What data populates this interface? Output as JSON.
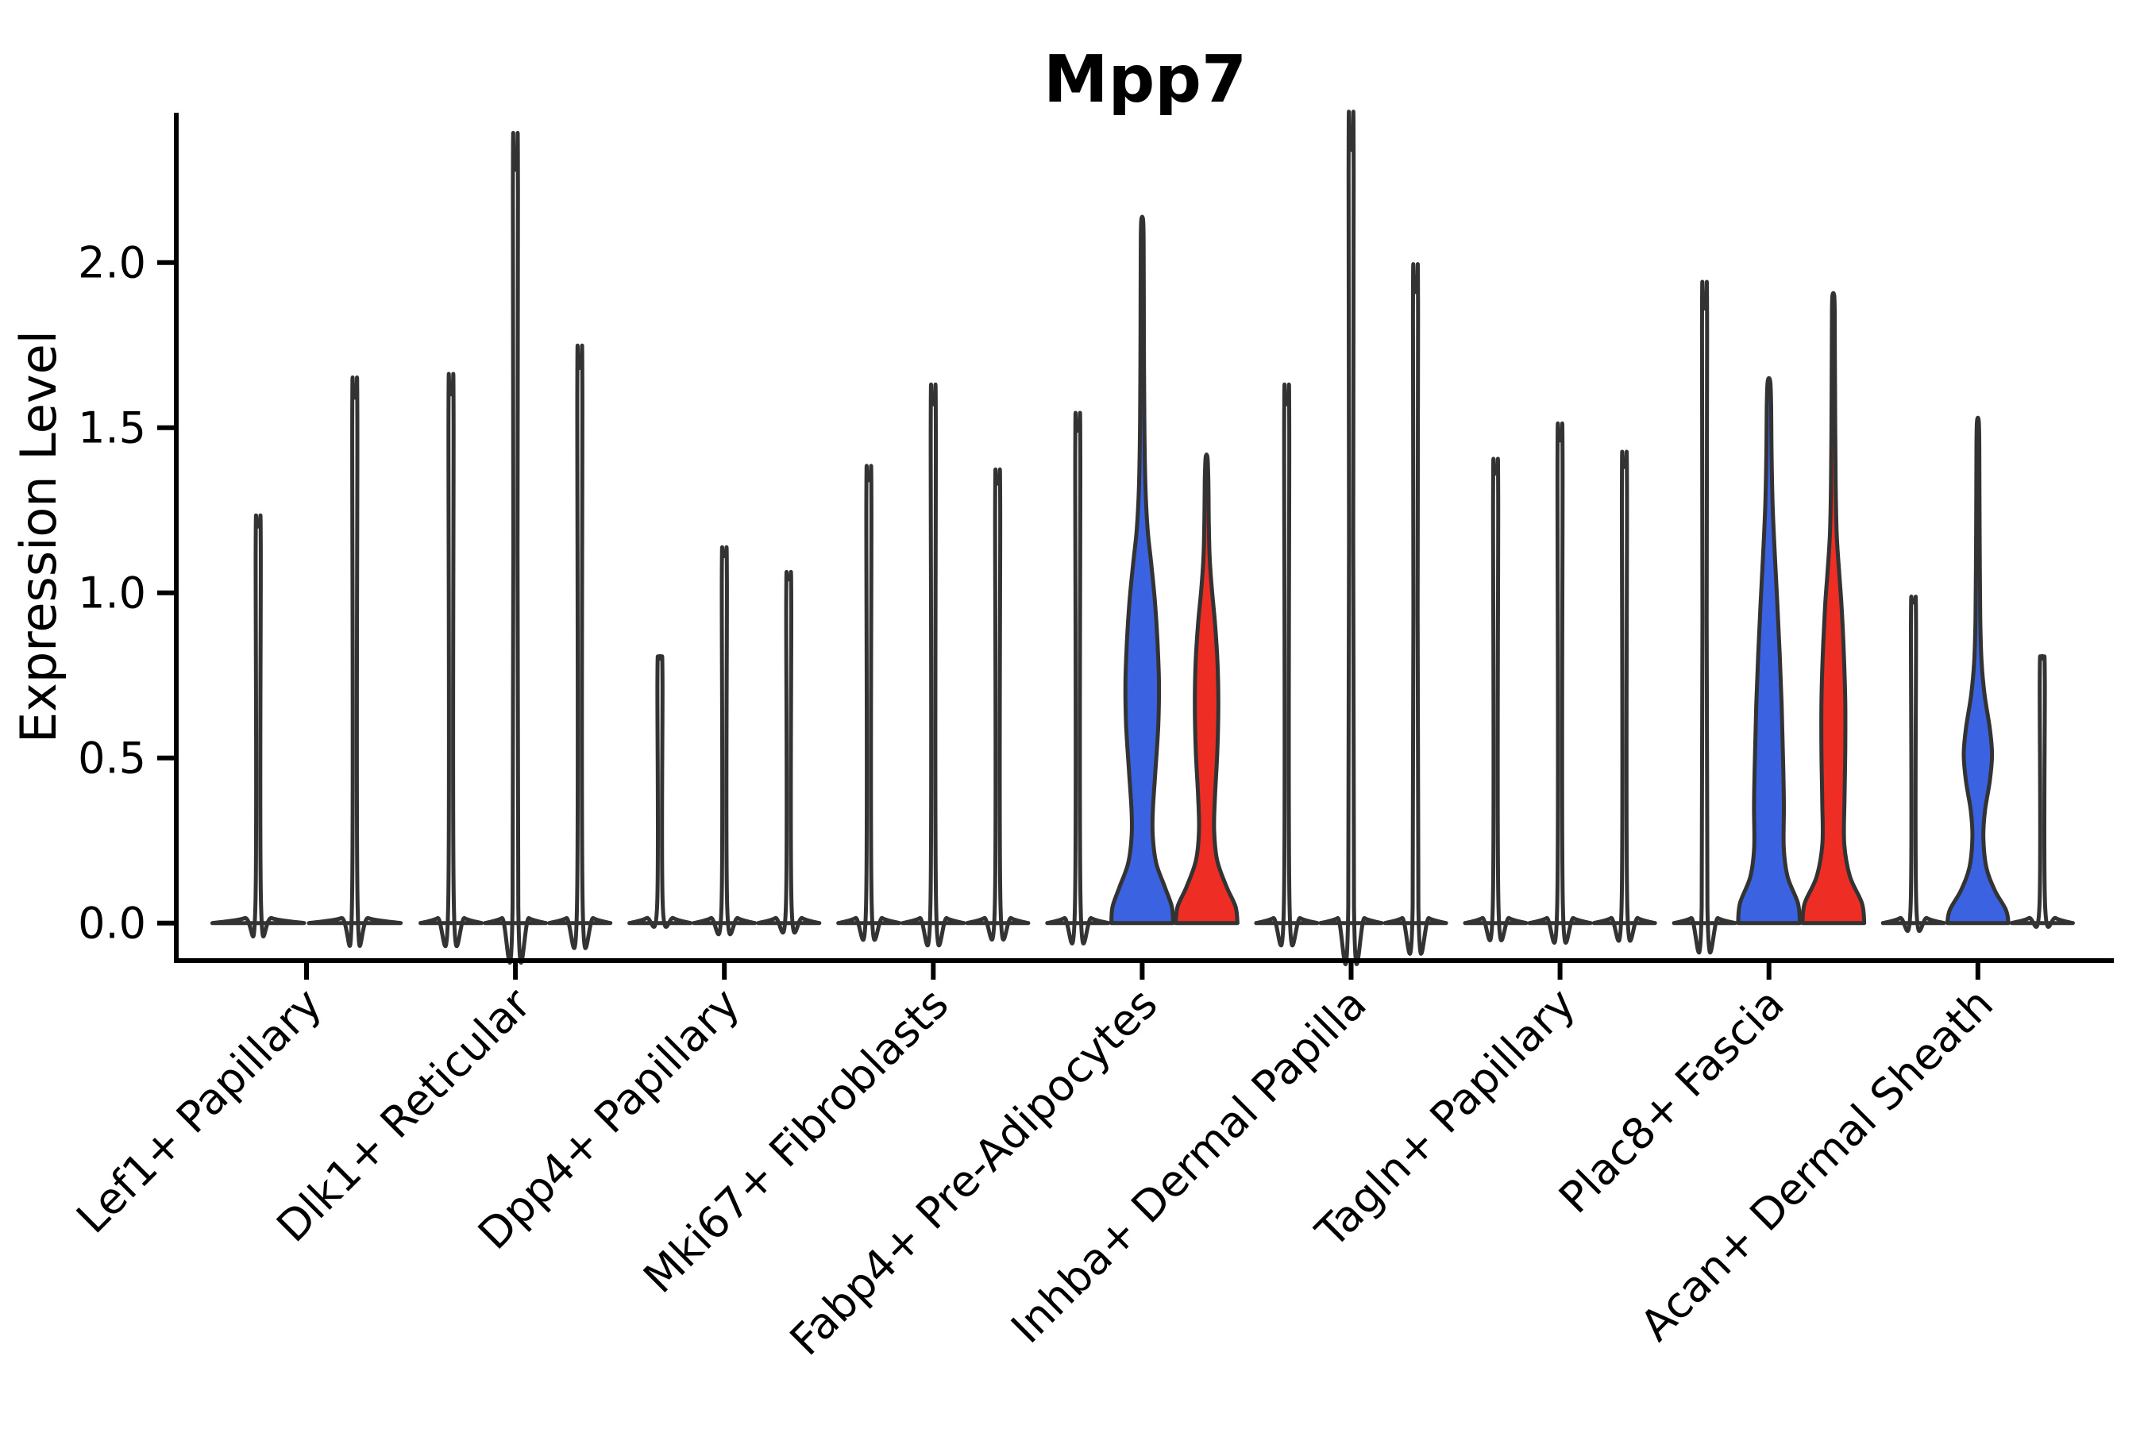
{
  "title": "Mpp7",
  "axes": {
    "ylabel": "Expression Level",
    "ytick_labels": [
      "0.0",
      "0.5",
      "1.0",
      "1.5",
      "2.0"
    ],
    "ylim": [
      -0.11,
      2.46
    ]
  },
  "colors": {
    "blue": "#3B63E1",
    "red": "#EE2E24",
    "violin_stroke": "#333333",
    "axis": "#000000",
    "background": "#FFFFFF",
    "none": "#FFFFFF"
  },
  "chart_data": {
    "type": "violin",
    "title": "Mpp7",
    "ylabel": "Expression Level",
    "yticks": [
      0.0,
      0.5,
      1.0,
      1.5,
      2.0
    ],
    "grid": false,
    "legend": false,
    "categories": [
      "Lef1+ Papillary",
      "Dlk1+ Reticular",
      "Dpp4+ Papillary",
      "Mki67+ Fibroblasts",
      "Fabp4+ Pre-Adipocytes",
      "Inhba+ Dermal Papilla",
      "Tagln+ Papillary",
      "Plac8+ Fascia",
      "Acan+ Dermal Sheath"
    ],
    "groups": [
      {
        "category": "Lef1+ Papillary",
        "violins": [
          {
            "shape": "spike",
            "max": 1.2,
            "fill": "none"
          },
          {
            "shape": "spike",
            "max": 1.59,
            "fill": "none"
          }
        ]
      },
      {
        "category": "Dlk1+ Reticular",
        "violins": [
          {
            "shape": "spike",
            "max": 1.6,
            "fill": "none"
          },
          {
            "shape": "spike",
            "max": 2.28,
            "fill": "none"
          },
          {
            "shape": "spike",
            "max": 1.68,
            "fill": "none"
          }
        ]
      },
      {
        "category": "Dpp4+ Papillary",
        "violins": [
          {
            "shape": "spike",
            "max": 0.8,
            "fill": "none"
          },
          {
            "shape": "spike",
            "max": 1.11,
            "fill": "none"
          },
          {
            "shape": "spike",
            "max": 1.04,
            "fill": "none"
          }
        ]
      },
      {
        "category": "Mki67+ Fibroblasts",
        "violins": [
          {
            "shape": "spike",
            "max": 1.34,
            "fill": "none"
          },
          {
            "shape": "spike",
            "max": 1.57,
            "fill": "none"
          },
          {
            "shape": "spike",
            "max": 1.33,
            "fill": "none"
          }
        ]
      },
      {
        "category": "Fabp4+ Pre-Adipocytes",
        "violins": [
          {
            "shape": "spike",
            "max": 1.49,
            "fill": "none"
          },
          {
            "shape": "profile",
            "max": 2.13,
            "fill": "blue",
            "profile": [
              [
                0,
                0.96
              ],
              [
                0.05,
                0.92
              ],
              [
                0.11,
                0.7
              ],
              [
                0.18,
                0.44
              ],
              [
                0.26,
                0.33
              ],
              [
                0.34,
                0.33
              ],
              [
                0.46,
                0.41
              ],
              [
                0.6,
                0.5
              ],
              [
                0.73,
                0.52
              ],
              [
                0.86,
                0.47
              ],
              [
                0.98,
                0.39
              ],
              [
                1.09,
                0.28
              ],
              [
                1.19,
                0.17
              ],
              [
                1.32,
                0.1
              ],
              [
                1.52,
                0.066
              ],
              [
                1.8,
                0.052
              ],
              [
                2.06,
                0.045
              ],
              [
                2.13,
                0.028
              ]
            ]
          },
          {
            "shape": "profile",
            "max": 1.41,
            "fill": "red",
            "profile": [
              [
                0,
                0.96
              ],
              [
                0.05,
                0.9
              ],
              [
                0.11,
                0.62
              ],
              [
                0.19,
                0.33
              ],
              [
                0.28,
                0.235
              ],
              [
                0.38,
                0.26
              ],
              [
                0.52,
                0.335
              ],
              [
                0.66,
                0.365
              ],
              [
                0.79,
                0.34
              ],
              [
                0.91,
                0.26
              ],
              [
                1.01,
                0.165
              ],
              [
                1.11,
                0.095
              ],
              [
                1.22,
                0.068
              ],
              [
                1.34,
                0.055
              ],
              [
                1.41,
                0.028
              ]
            ]
          }
        ]
      },
      {
        "category": "Inhba+ Dermal Papilla",
        "violins": [
          {
            "shape": "spike",
            "max": 1.57,
            "fill": "none"
          },
          {
            "shape": "spike",
            "max": 2.34,
            "fill": "none"
          },
          {
            "shape": "spike",
            "max": 1.91,
            "fill": "none"
          }
        ]
      },
      {
        "category": "Tagln+ Papillary",
        "violins": [
          {
            "shape": "spike",
            "max": 1.36,
            "fill": "none"
          },
          {
            "shape": "spike",
            "max": 1.46,
            "fill": "none"
          },
          {
            "shape": "spike",
            "max": 1.38,
            "fill": "none"
          }
        ]
      },
      {
        "category": "Plac8+ Fascia",
        "violins": [
          {
            "shape": "spike",
            "max": 1.86,
            "fill": "none"
          },
          {
            "shape": "profile",
            "max": 1.64,
            "fill": "blue",
            "profile": [
              [
                0,
                0.96
              ],
              [
                0.06,
                0.9
              ],
              [
                0.14,
                0.58
              ],
              [
                0.23,
                0.46
              ],
              [
                0.36,
                0.465
              ],
              [
                0.51,
                0.435
              ],
              [
                0.66,
                0.395
              ],
              [
                0.81,
                0.335
              ],
              [
                0.96,
                0.265
              ],
              [
                1.11,
                0.185
              ],
              [
                1.26,
                0.115
              ],
              [
                1.42,
                0.082
              ],
              [
                1.56,
                0.068
              ],
              [
                1.64,
                0.04
              ]
            ]
          },
          {
            "shape": "profile",
            "max": 1.9,
            "fill": "red",
            "profile": [
              [
                0,
                0.96
              ],
              [
                0.06,
                0.89
              ],
              [
                0.14,
                0.52
              ],
              [
                0.24,
                0.34
              ],
              [
                0.37,
                0.345
              ],
              [
                0.52,
                0.37
              ],
              [
                0.67,
                0.37
              ],
              [
                0.82,
                0.325
              ],
              [
                0.96,
                0.255
              ],
              [
                1.07,
                0.175
              ],
              [
                1.18,
                0.105
              ],
              [
                1.33,
                0.072
              ],
              [
                1.52,
                0.058
              ],
              [
                1.72,
                0.048
              ],
              [
                1.84,
                0.044
              ],
              [
                1.9,
                0.028
              ]
            ]
          }
        ]
      },
      {
        "category": "Acan+ Dermal Sheath",
        "violins": [
          {
            "shape": "spike",
            "max": 0.97,
            "fill": "none"
          },
          {
            "shape": "profile",
            "max": 1.52,
            "fill": "blue",
            "profile": [
              [
                0,
                0.95
              ],
              [
                0.04,
                0.87
              ],
              [
                0.1,
                0.52
              ],
              [
                0.17,
                0.26
              ],
              [
                0.26,
                0.17
              ],
              [
                0.34,
                0.22
              ],
              [
                0.43,
                0.37
              ],
              [
                0.51,
                0.44
              ],
              [
                0.59,
                0.37
              ],
              [
                0.69,
                0.21
              ],
              [
                0.79,
                0.115
              ],
              [
                0.92,
                0.075
              ],
              [
                1.1,
                0.058
              ],
              [
                1.3,
                0.05
              ],
              [
                1.44,
                0.045
              ],
              [
                1.52,
                0.028
              ]
            ]
          },
          {
            "shape": "spike",
            "max": 0.8,
            "fill": "none"
          }
        ]
      }
    ]
  }
}
